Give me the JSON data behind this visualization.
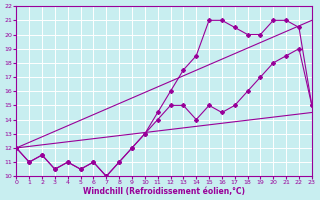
{
  "xlabel": "Windchill (Refroidissement éolien,°C)",
  "ylim": [
    10,
    22
  ],
  "xlim": [
    0,
    23
  ],
  "yticks": [
    10,
    11,
    12,
    13,
    14,
    15,
    16,
    17,
    18,
    19,
    20,
    21,
    22
  ],
  "xticks": [
    0,
    1,
    2,
    3,
    4,
    5,
    6,
    7,
    8,
    9,
    10,
    11,
    12,
    13,
    14,
    15,
    16,
    17,
    18,
    19,
    20,
    21,
    22,
    23
  ],
  "bg_color": "#c8eef0",
  "line_color": "#990099",
  "grid_color": "#ffffff",
  "straight_lines": [
    {
      "x": [
        0,
        23
      ],
      "y": [
        12,
        21
      ]
    },
    {
      "x": [
        0,
        23
      ],
      "y": [
        12,
        14.5
      ]
    }
  ],
  "marker_lines": [
    {
      "x": [
        0,
        1,
        2,
        3,
        4,
        5,
        6,
        7,
        8,
        9,
        10,
        11,
        12,
        13,
        14,
        15,
        16,
        17,
        18,
        19,
        20,
        21,
        22,
        23
      ],
      "y": [
        12,
        11,
        11.5,
        10.5,
        11,
        10.5,
        11,
        10,
        11,
        12,
        13,
        14,
        15,
        15,
        14,
        15,
        14.5,
        15,
        16,
        17,
        18,
        18.5,
        19,
        15
      ]
    },
    {
      "x": [
        0,
        1,
        2,
        3,
        4,
        5,
        6,
        7,
        8,
        9,
        10,
        11,
        12,
        13,
        14,
        15,
        16,
        17,
        18,
        19,
        20,
        21,
        22,
        23
      ],
      "y": [
        12,
        11,
        11.5,
        10.5,
        11,
        10.5,
        11,
        10,
        11,
        12,
        13,
        14.5,
        16,
        17.5,
        18.5,
        21,
        21,
        20.5,
        20,
        20,
        21,
        21,
        20.5,
        15
      ]
    }
  ]
}
